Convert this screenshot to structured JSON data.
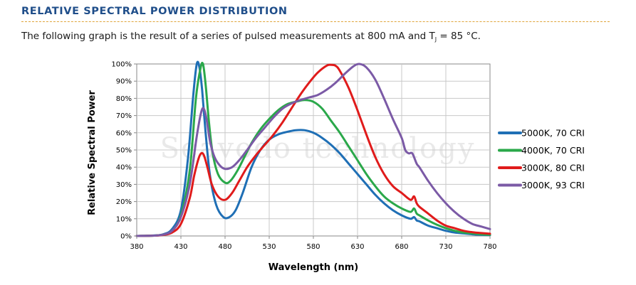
{
  "heading": "RELATIVE SPECTRAL POWER DISTRIBUTION",
  "caption": {
    "prefix": "The following graph is the result of a series of pulsed measurements at 800 mA and T",
    "subscript": "J",
    "suffix": " = 85 °C."
  },
  "watermark": "Seavodo technology",
  "chart_data": {
    "type": "line",
    "xlabel": "Wavelength (nm)",
    "ylabel": "Relative Spectral Power",
    "xlim": [
      380,
      780
    ],
    "ylim": [
      0,
      100
    ],
    "xticks": [
      "380",
      "430",
      "480",
      "530",
      "580",
      "630",
      "680",
      "730",
      "780"
    ],
    "yticks": [
      "0%",
      "10%",
      "20%",
      "30%",
      "40%",
      "50%",
      "60%",
      "70%",
      "80%",
      "90%",
      "100%"
    ],
    "grid": true,
    "legend_position": "right",
    "series": [
      {
        "name": "5000K, 70 CRI",
        "color": "#1f6fb5",
        "x": [
          380,
          400,
          410,
          420,
          430,
          438,
          444,
          448,
          451,
          454,
          458,
          463,
          470,
          478,
          485,
          492,
          500,
          510,
          520,
          530,
          540,
          550,
          560,
          570,
          580,
          590,
          600,
          610,
          620,
          630,
          640,
          650,
          660,
          670,
          680,
          690,
          694,
          697,
          700,
          710,
          720,
          730,
          740,
          750,
          760,
          770,
          780
        ],
        "y": [
          0,
          0.3,
          1,
          4,
          15,
          45,
          82,
          100,
          98,
          85,
          60,
          35,
          18,
          11,
          11,
          15,
          25,
          40,
          50,
          56,
          59,
          60.5,
          61.5,
          61.5,
          60,
          57,
          53,
          48,
          42,
          36,
          30,
          24,
          19,
          15,
          12,
          10,
          11,
          9,
          8.5,
          6,
          4.5,
          3,
          2,
          1.5,
          1,
          0.7,
          0.5
        ]
      },
      {
        "name": "4000K, 70 CRI",
        "color": "#2aa84a",
        "x": [
          380,
          400,
          410,
          420,
          430,
          440,
          447,
          452,
          455,
          458,
          462,
          466,
          472,
          480,
          486,
          494,
          502,
          510,
          520,
          530,
          540,
          550,
          560,
          570,
          580,
          590,
          600,
          610,
          620,
          630,
          640,
          650,
          660,
          670,
          680,
          690,
          694,
          697,
          700,
          710,
          720,
          730,
          740,
          750,
          760,
          770,
          780
        ],
        "y": [
          0,
          0.2,
          0.8,
          3,
          12,
          38,
          80,
          97,
          100,
          88,
          65,
          48,
          36,
          31,
          32,
          38,
          46,
          54,
          62,
          68,
          73,
          76.5,
          78,
          79,
          78,
          74,
          67,
          60,
          52,
          44,
          36,
          29,
          23,
          19,
          16,
          14,
          16,
          13,
          12,
          9,
          6.5,
          4.5,
          3,
          2,
          1.5,
          1,
          0.7
        ]
      },
      {
        "name": "3000K, 80 CRI",
        "color": "#e01b1b",
        "x": [
          380,
          400,
          410,
          420,
          430,
          440,
          445,
          450,
          453,
          456,
          460,
          465,
          472,
          480,
          488,
          496,
          505,
          515,
          525,
          535,
          545,
          555,
          565,
          575,
          585,
          595,
          600,
          605,
          610,
          620,
          630,
          640,
          650,
          660,
          670,
          680,
          690,
          694,
          697,
          700,
          710,
          720,
          730,
          740,
          750,
          760,
          770,
          780
        ],
        "y": [
          0,
          0.2,
          0.6,
          2,
          7,
          22,
          35,
          45,
          48,
          47,
          40,
          30,
          23,
          21,
          25,
          32,
          40,
          47,
          53,
          59,
          66,
          74,
          82,
          89,
          95,
          99,
          99.5,
          99,
          96,
          86,
          73,
          59,
          46,
          36,
          29,
          25,
          21,
          23,
          19,
          17,
          13,
          9,
          6,
          4.5,
          3,
          2.2,
          1.7,
          1.3
        ]
      },
      {
        "name": "3000K, 93 CRI",
        "color": "#7b5aa6",
        "x": [
          380,
          400,
          410,
          420,
          430,
          440,
          448,
          453,
          456,
          459,
          463,
          468,
          474,
          480,
          488,
          496,
          505,
          515,
          525,
          535,
          545,
          555,
          565,
          575,
          585,
          595,
          605,
          615,
          625,
          632,
          640,
          650,
          660,
          670,
          680,
          684,
          688,
          692,
          697,
          700,
          710,
          720,
          730,
          740,
          750,
          760,
          770,
          780
        ],
        "y": [
          0,
          0.2,
          0.8,
          3,
          11,
          30,
          58,
          72,
          74,
          68,
          55,
          46,
          41,
          39,
          40,
          44,
          50,
          57,
          63,
          69,
          74,
          77,
          79,
          80.5,
          82,
          85,
          89,
          94,
          98.5,
          100,
          98,
          91,
          80,
          68,
          57,
          50,
          48,
          48,
          42,
          40,
          32,
          25,
          19,
          14,
          10,
          7,
          5.5,
          4
        ]
      }
    ]
  }
}
